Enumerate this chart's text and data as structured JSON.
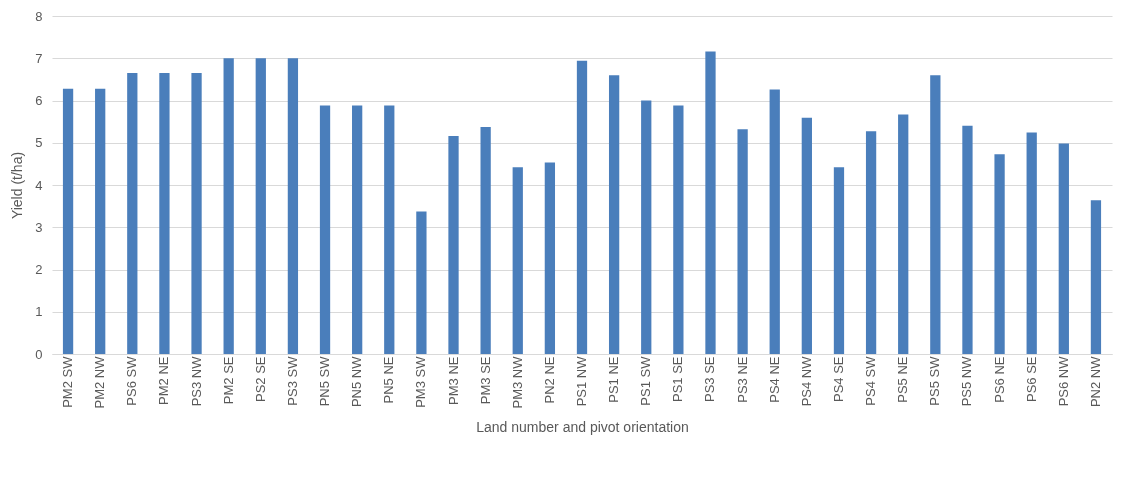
{
  "chart_data": {
    "type": "bar",
    "xlabel": "Land number and pivot orientation",
    "ylabel": "Yield (t/ha)",
    "categories": [
      "PM2 SW",
      "PM2 NW",
      "PS6 SW",
      "PM2 NE",
      "PS3 NW",
      "PM2 SE",
      "PS2 SE",
      "PS3 SW",
      "PN5 SW",
      "PN5 NW",
      "PN5 NE",
      "PM3 SW",
      "PM3 NE",
      "PM3 SE",
      "PM3 NW",
      "PN2 NE",
      "PS1 NW",
      "PS1 NE",
      "PS1 SW",
      "PS1 SE",
      "PS3 SE",
      "PS3 NE",
      "PS4 NE",
      "PS4 NW",
      "PS4 SE",
      "PS4 SW",
      "PS5 NE",
      "PS5 SW",
      "PS5 NW",
      "PS6 NE",
      "PS6 SE",
      "PS6 NW",
      "PN2 NW"
    ],
    "values": [
      6.28,
      6.28,
      6.65,
      6.65,
      6.65,
      7.0,
      7.0,
      7.0,
      5.88,
      5.88,
      5.88,
      3.37,
      5.16,
      5.37,
      4.42,
      4.53,
      6.94,
      6.6,
      6.0,
      5.88,
      7.16,
      5.32,
      6.26,
      5.59,
      4.42,
      5.27,
      5.67,
      6.6,
      5.4,
      4.73,
      5.24,
      4.98,
      3.64
    ],
    "color": "#4a7ebb",
    "ylim": [
      0,
      8
    ],
    "yticks": [
      0,
      1,
      2,
      3,
      4,
      5,
      6,
      7,
      8
    ],
    "grid": "y"
  }
}
